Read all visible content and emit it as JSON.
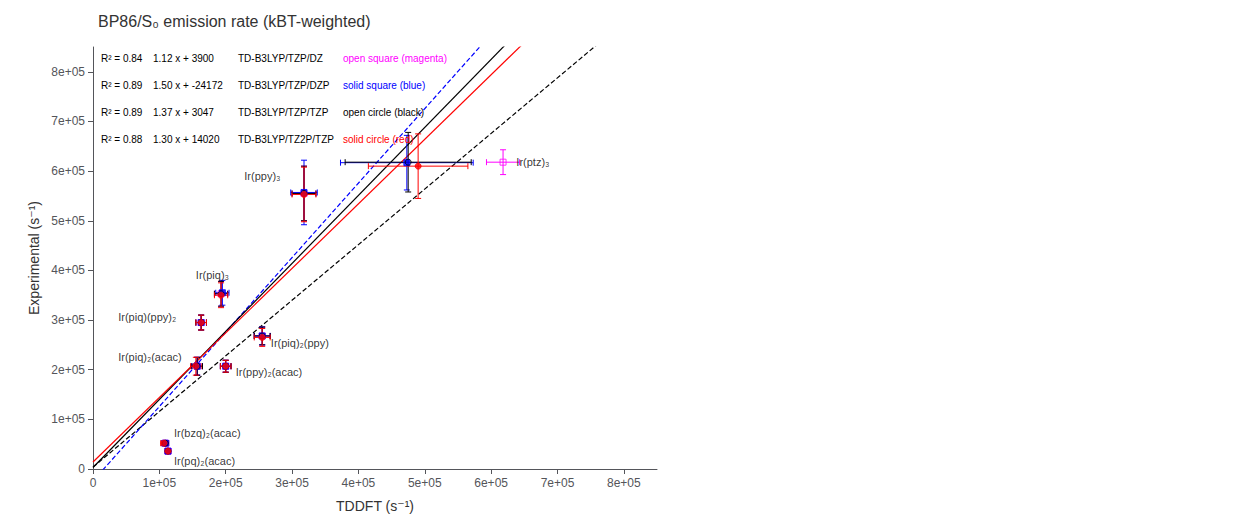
{
  "chart_data": {
    "type": "scatter",
    "title": "BP86/S₀ emission rate (kBT-weighted)",
    "xlabel": "TDDFT (s⁻¹)",
    "ylabel": "Experimental (s⁻¹)",
    "xlim": [
      0,
      850000
    ],
    "ylim": [
      0,
      850000
    ],
    "xticks": [
      0,
      {
        "value": 100000,
        "label": "1e+05"
      },
      {
        "value": 200000,
        "label": "2e+05"
      },
      {
        "value": 300000,
        "label": "3e+05"
      },
      {
        "value": 400000,
        "label": "4e+05"
      },
      {
        "value": 500000,
        "label": "5e+05"
      },
      {
        "value": 600000,
        "label": "6e+05"
      },
      {
        "value": 700000,
        "label": "7e+05"
      },
      {
        "value": 800000,
        "label": "8e+05"
      }
    ],
    "yticks": [
      0,
      {
        "value": 100000,
        "label": "1e+05"
      },
      {
        "value": 200000,
        "label": "2e+05"
      },
      {
        "value": 300000,
        "label": "3e+05"
      },
      {
        "value": 400000,
        "label": "4e+05"
      },
      {
        "value": 500000,
        "label": "5e+05"
      },
      {
        "value": 600000,
        "label": "6e+05"
      },
      {
        "value": 700000,
        "label": "7e+05"
      },
      {
        "value": 800000,
        "label": "8e+05"
      }
    ],
    "grid": false,
    "fit_lines": [
      {
        "x": [
          0,
          850000
        ],
        "y": [
          3900,
          955900
        ],
        "color": "black",
        "line_style": "dashed"
      },
      {
        "x": [
          0,
          850000
        ],
        "y": [
          -24172,
          1250828
        ],
        "color": "blue",
        "line_style": "dashed"
      },
      {
        "x": [
          0,
          850000
        ],
        "y": [
          3047,
          1167547
        ],
        "color": "black",
        "line_style": "solid"
      },
      {
        "x": [
          0,
          850000
        ],
        "y": [
          14020,
          1119020
        ],
        "color": "red",
        "line_style": "solid"
      }
    ],
    "series": [
      {
        "color": "magenta",
        "marker": "open_square",
        "x": [
          109000,
          113000,
          157000,
          163000,
          193000,
          255000,
          200000,
          318000,
          618000
        ],
        "y": [
          52000,
          36000,
          207000,
          295000,
          353000,
          268000,
          207000,
          555000,
          618000
        ],
        "xerr": [
          5000,
          4000,
          8000,
          8000,
          10000,
          12000,
          8000,
          18000,
          25000
        ],
        "yerr": [
          4000,
          3000,
          18000,
          15000,
          25000,
          18000,
          12000,
          55000,
          25000
        ],
        "row": [
          "R² = 0.84",
          "1.12 x + 3900",
          "TD-B3LYP/TZP/DZ",
          "open square (magenta)"
        ]
      },
      {
        "color": "blue",
        "marker": "filled_square",
        "x": [
          109000,
          113000,
          157000,
          163000,
          195000,
          255000,
          200000,
          318000,
          473000
        ],
        "y": [
          52000,
          36000,
          207000,
          295000,
          355000,
          268000,
          207000,
          557000,
          617000
        ],
        "xerr": [
          5000,
          4000,
          8000,
          8000,
          10000,
          12000,
          8000,
          20000,
          100000
        ],
        "yerr": [
          4000,
          3000,
          18000,
          15000,
          25000,
          18000,
          12000,
          65000,
          55000
        ],
        "row": [
          "R² = 0.89",
          "1.50 x + -24172",
          "TD-B3LYP/TZP/DZP",
          "solid square (blue)"
        ]
      },
      {
        "color": "black",
        "marker": "open_circle",
        "x": [
          109000,
          113000,
          157000,
          163000,
          193000,
          255000,
          200000,
          318000,
          475000
        ],
        "y": [
          52000,
          36000,
          207000,
          295000,
          353000,
          268000,
          207000,
          555000,
          618000
        ],
        "xerr": [
          5000,
          4000,
          8000,
          8000,
          10000,
          12000,
          8000,
          18000,
          95000
        ],
        "yerr": [
          4000,
          3000,
          18000,
          15000,
          25000,
          18000,
          12000,
          55000,
          60000
        ],
        "row": [
          "R² = 0.89",
          "1.37 x + 3047",
          "TD-B3LYP/TZP/TZP",
          "open circle (black)"
        ]
      },
      {
        "color": "red",
        "marker": "filled_circle",
        "x": [
          107000,
          113000,
          155000,
          163000,
          193000,
          255000,
          200000,
          318000,
          490000
        ],
        "y": [
          52000,
          36000,
          207000,
          295000,
          350000,
          265000,
          207000,
          553000,
          610000
        ],
        "xerr": [
          5000,
          4000,
          8000,
          8000,
          10000,
          12000,
          8000,
          18000,
          75000
        ],
        "yerr": [
          4000,
          3000,
          18000,
          15000,
          25000,
          18000,
          12000,
          55000,
          65000
        ],
        "row": [
          "R² = 0.88",
          "1.30 x + 14020",
          "TD-B3LYP/TZ2P/TZP",
          "solid circle (red)"
        ]
      }
    ],
    "annotations": [
      {
        "text": "Ir(bzq)₂(acac)",
        "x": 122000,
        "y": 73000
      },
      {
        "text": "Ir(pq)₂(acac)",
        "x": 122000,
        "y": 17000
      },
      {
        "text": "Ir(piq)₂(acac)",
        "x": 38000,
        "y": 225000
      },
      {
        "text": "Ir(piq)(ppy)₂",
        "x": 38000,
        "y": 307000
      },
      {
        "text": "Ir(piq)₃",
        "x": 155000,
        "y": 390000
      },
      {
        "text": "Ir(piq)₂(ppy)",
        "x": 268000,
        "y": 253000
      },
      {
        "text": "Ir(ppy)₂(acac)",
        "x": 215000,
        "y": 196000
      },
      {
        "text": "Ir(ppy)₃",
        "x": 228000,
        "y": 590000
      },
      {
        "text": "Ir(ptz)₃",
        "x": 638000,
        "y": 618000
      }
    ]
  }
}
